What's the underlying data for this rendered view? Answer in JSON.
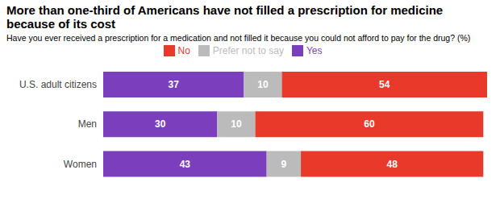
{
  "chart_data": {
    "type": "bar",
    "orientation": "horizontal",
    "stacked": true,
    "title": "More than one-third of Americans have not filled a prescription for medicine because of its cost",
    "subtitle": "Have you ever received a prescription for a medication and not filled it because you could not afford to pay for the drug? (%)",
    "categories": [
      "U.S. adult citizens",
      "Men",
      "Women"
    ],
    "series": [
      {
        "name": "Yes",
        "color": "#7B3FBE",
        "values": [
          37,
          30,
          43
        ]
      },
      {
        "name": "Prefer not to say",
        "color": "#BBBBBB",
        "values": [
          10,
          10,
          9
        ]
      },
      {
        "name": "No",
        "color": "#E8392A",
        "values": [
          54,
          60,
          48
        ]
      }
    ],
    "xlim": [
      0,
      101
    ],
    "grid": false,
    "legend": "top",
    "data_labels": true,
    "tick_labels": "y"
  }
}
